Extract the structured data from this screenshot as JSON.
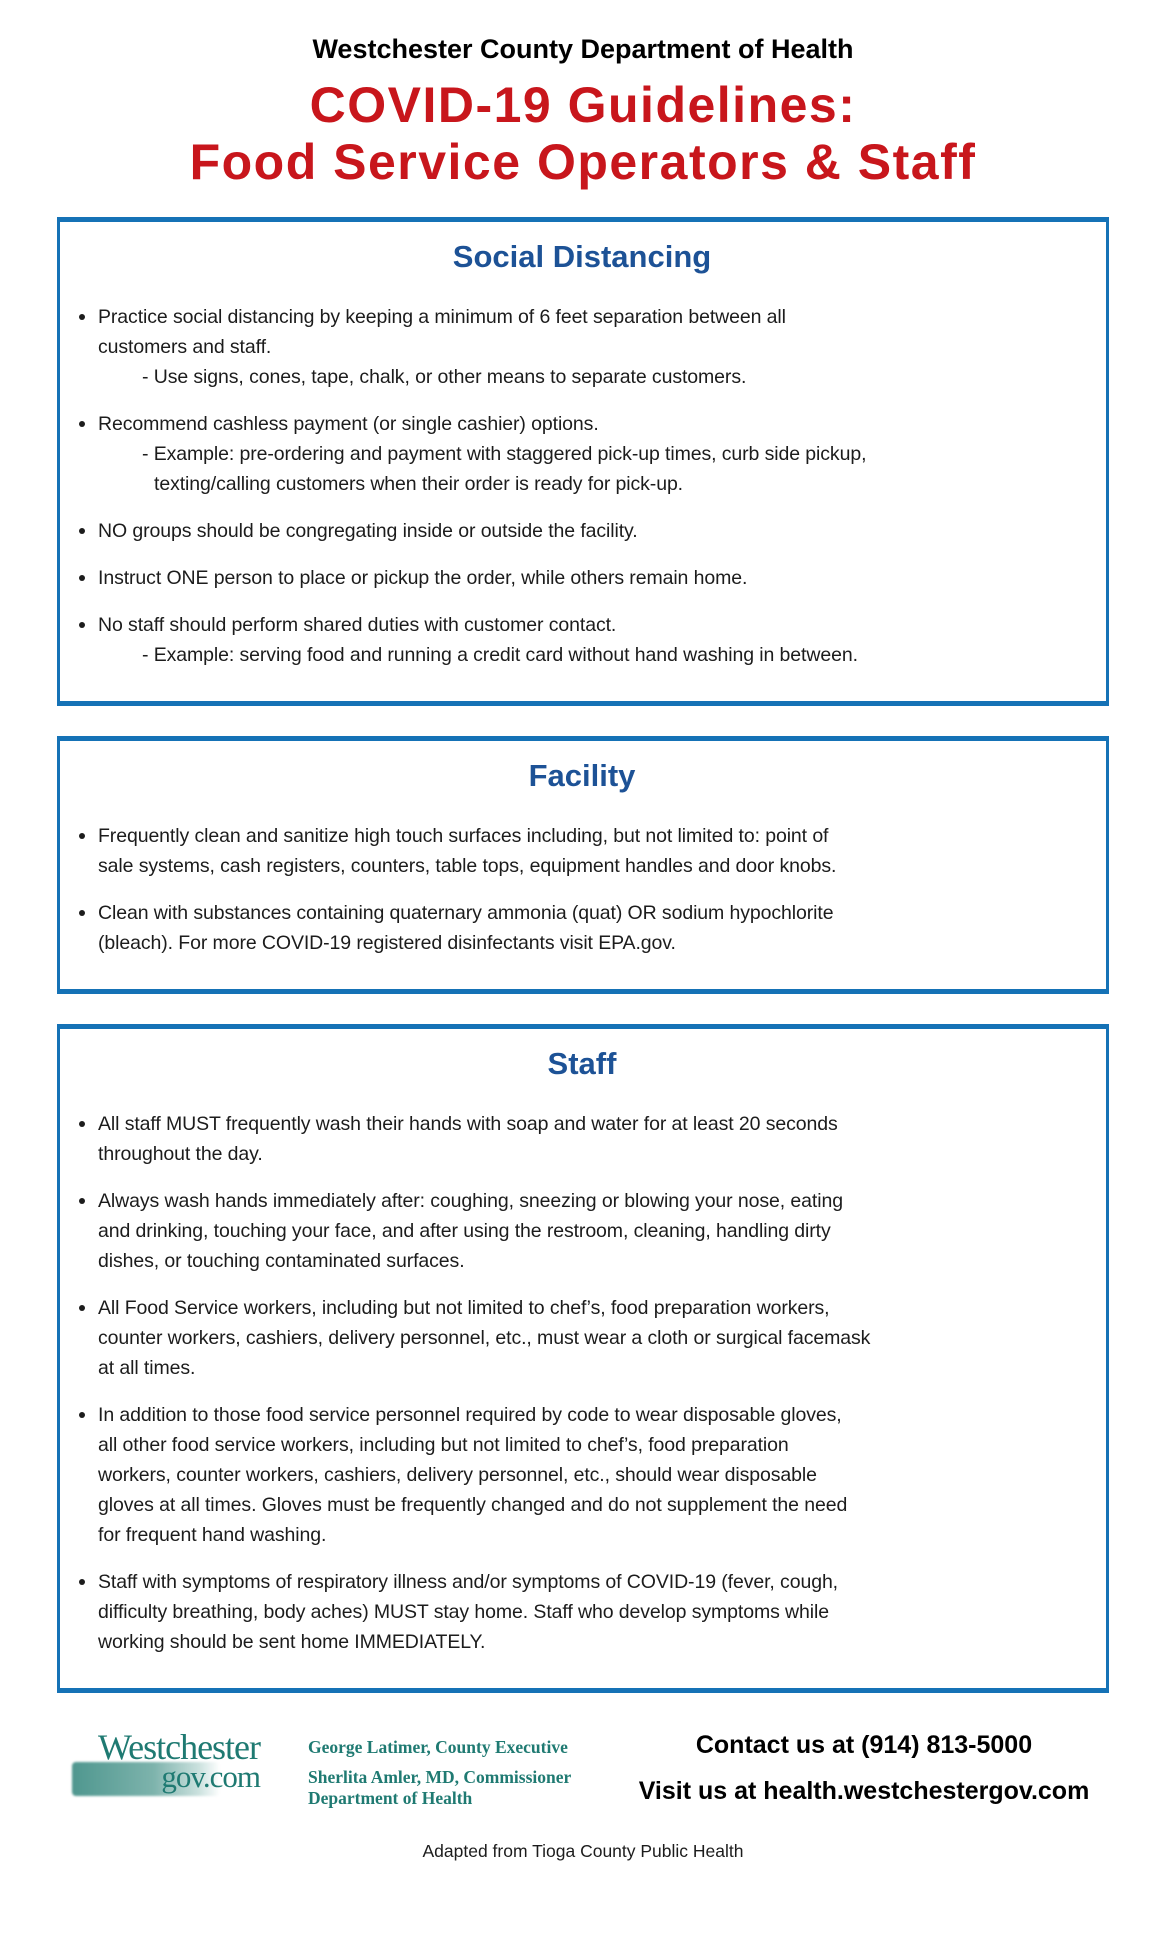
{
  "colors": {
    "red": "#c8161c",
    "border_blue": "#1572b6",
    "heading_blue": "#1d5296",
    "teal": "#1f7a72"
  },
  "header": {
    "org": "Westchester County Department of Health",
    "title_line1": "COVID-19 Guidelines:",
    "title_line2": "Food Service Operators & Staff"
  },
  "sections": [
    {
      "title": "Social Distancing",
      "items": [
        {
          "main": [
            "Practice social distancing by keeping a minimum of 6 feet separation between all",
            "customers and staff."
          ],
          "sub": [
            "- Use signs, cones, tape, chalk, or other means to separate customers."
          ]
        },
        {
          "main": [
            "Recommend cashless payment (or single cashier) options."
          ],
          "sub": [
            "- Example: pre-ordering and payment with staggered pick-up times, curb side pickup,",
            "texting/calling customers when their order is ready for pick-up."
          ]
        },
        {
          "main": [
            "NO groups should be congregating inside or outside the facility."
          ]
        },
        {
          "main": [
            "Instruct ONE person to place or pickup the order, while others remain home."
          ]
        },
        {
          "main": [
            "No staff should perform shared duties with customer contact."
          ],
          "sub": [
            "- Example: serving food and running a credit card without hand washing in between."
          ]
        }
      ]
    },
    {
      "title": "Facility",
      "items": [
        {
          "main": [
            "Frequently clean and sanitize high touch surfaces including, but not limited to: point of",
            "sale systems, cash registers, counters, table tops, equipment handles and door knobs."
          ]
        },
        {
          "main": [
            "Clean with substances containing quaternary ammonia (quat) OR sodium hypochlorite",
            "(bleach). For more COVID-19 registered disinfectants visit EPA.gov."
          ]
        }
      ]
    },
    {
      "title": "Staff",
      "items": [
        {
          "main": [
            "All staff MUST frequently wash their hands with soap and water for at least 20 seconds",
            "throughout the day."
          ]
        },
        {
          "main": [
            "Always wash hands immediately after: coughing, sneezing or blowing your nose, eating",
            "and drinking, touching your face, and after using the restroom, cleaning, handling dirty",
            "dishes, or touching contaminated surfaces."
          ]
        },
        {
          "main": [
            "All Food Service workers, including but not limited to chef’s, food preparation workers,",
            "counter workers, cashiers, delivery personnel, etc., must wear a cloth or surgical facemask",
            "at all times."
          ]
        },
        {
          "main": [
            "In addition to those food service personnel required by code to wear disposable gloves,",
            "all other food service workers, including but not limited to chef’s, food preparation",
            "workers, counter workers, cashiers, delivery personnel, etc., should wear disposable",
            "gloves at all times. Gloves must be frequently changed and do not supplement the need",
            "for frequent hand washing."
          ]
        },
        {
          "main": [
            "Staff with symptoms of respiratory illness and/or symptoms of COVID-19 (fever, cough,",
            "difficulty breathing, body aches) MUST stay home. Staff who develop symptoms while",
            "working should be sent home IMMEDIATELY."
          ]
        }
      ]
    }
  ],
  "footer": {
    "logo_line1": "Westchester",
    "logo_line2": "gov.com",
    "official_line1": "George Latimer, County Executive",
    "official_line2": "Sherlita Amler, MD, Commissioner",
    "official_line3": "Department of Health",
    "contact_line1": "Contact us at (914) 813-5000",
    "contact_line2": "Visit us at health.westchestergov.com",
    "credit": "Adapted from Tioga County Public Health"
  }
}
